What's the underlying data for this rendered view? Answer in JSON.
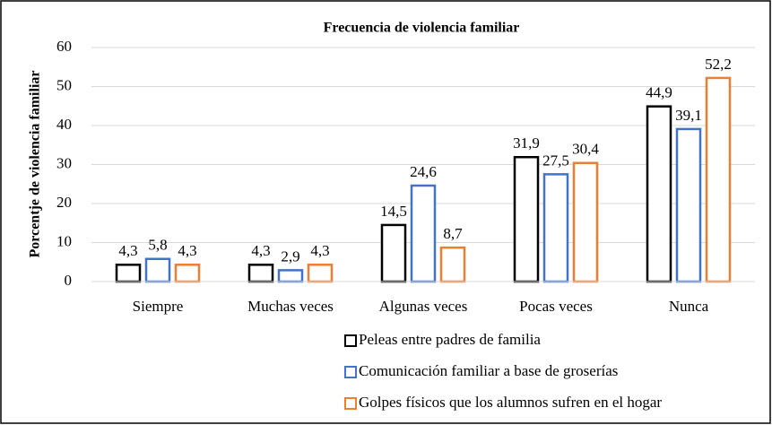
{
  "chart_data": {
    "type": "bar",
    "title": "Frecuencia de violencia familiar",
    "y_label": "Porcentje de violencia familiar",
    "categories": [
      "Siempre",
      "Muchas veces",
      "Algunas veces",
      "Pocas veces",
      "Nunca"
    ],
    "series": [
      {
        "name": "Peleas entre padres de familia",
        "color": "#000000",
        "values": [
          4.3,
          4.3,
          14.5,
          31.9,
          44.9
        ],
        "value_labels": [
          "4,3",
          "4,3",
          "14,5",
          "31,9",
          "44,9"
        ]
      },
      {
        "name": "Comunicación familiar a base de groserías",
        "color": "#4472c4",
        "values": [
          5.8,
          2.9,
          24.6,
          27.5,
          39.1
        ],
        "value_labels": [
          "5,8",
          "2,9",
          "24,6",
          "27,5",
          "39,1"
        ]
      },
      {
        "name": "Golpes físicos que los alumnos sufren en el hogar",
        "color": "#ed7d31",
        "values": [
          4.3,
          4.3,
          8.7,
          30.4,
          52.2
        ],
        "value_labels": [
          "4,3",
          "4,3",
          "8,7",
          "30,4",
          "52,2"
        ]
      }
    ],
    "ylim": [
      0,
      60
    ],
    "yticks": [
      0,
      10,
      20,
      30,
      40,
      50,
      60
    ],
    "grid": true,
    "legend": "bottom"
  }
}
